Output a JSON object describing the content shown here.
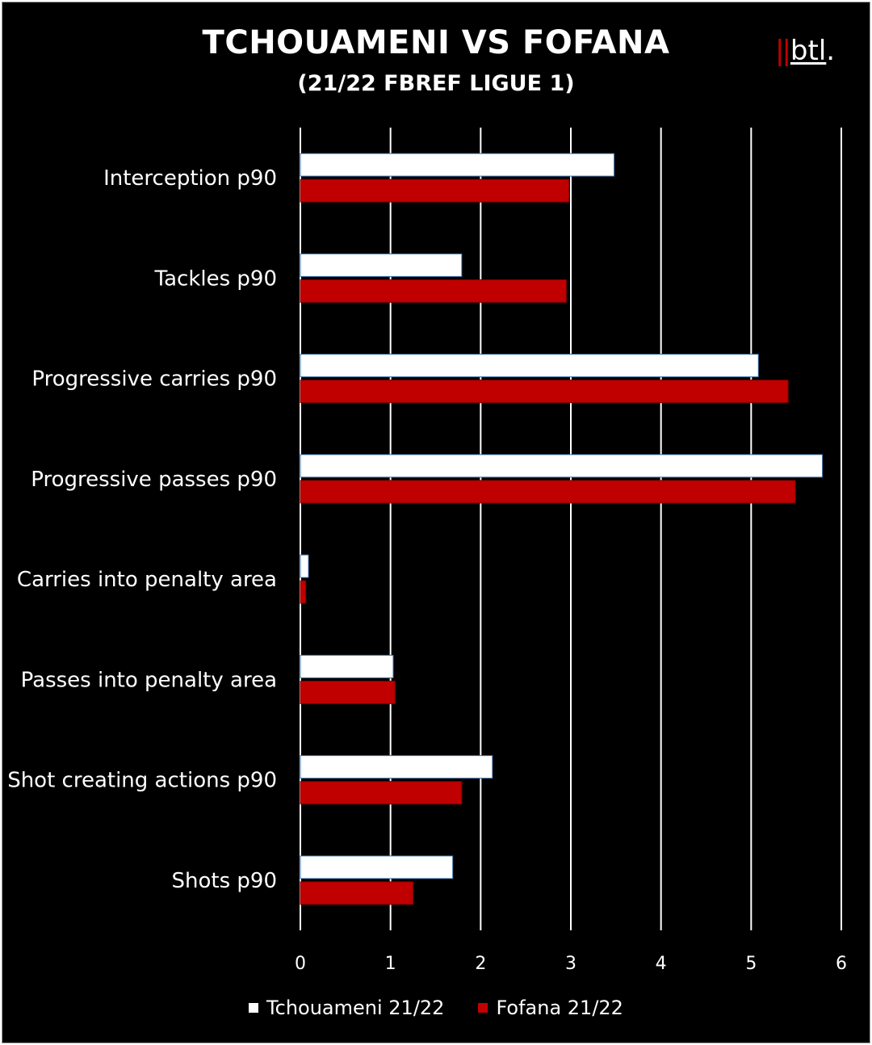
{
  "chart_data": {
    "type": "bar",
    "orientation": "horizontal",
    "title": "TCHOUAMENI  VS FOFANA",
    "subtitle": "(21/22 FBREF LIGUE 1)",
    "categories": [
      "Interception p90",
      "Tackles p90",
      "Progressive carries p90",
      "Progressive passes p90",
      "Carries into penalty area",
      "Passes into penalty area",
      "Shot creating actions p90",
      "Shots p90"
    ],
    "series": [
      {
        "name": "Tchouameni 21/22",
        "color": "#ffffff",
        "values": [
          3.48,
          1.79,
          5.08,
          5.79,
          0.09,
          1.03,
          2.13,
          1.69
        ]
      },
      {
        "name": "Fofana 21/22",
        "color": "#c00000",
        "values": [
          2.98,
          2.95,
          5.41,
          5.49,
          0.06,
          1.05,
          1.79,
          1.25
        ]
      }
    ],
    "xlim": [
      0,
      6
    ],
    "xticks": [
      "0",
      "1",
      "2",
      "3",
      "4",
      "5",
      "6"
    ],
    "grid": true,
    "legend": "bottom"
  },
  "logo": {
    "bars": "||",
    "text": "btl",
    "dot": "."
  },
  "colors": {
    "background": "#000000",
    "grid": "#ffffff",
    "accent": "#c00000"
  }
}
